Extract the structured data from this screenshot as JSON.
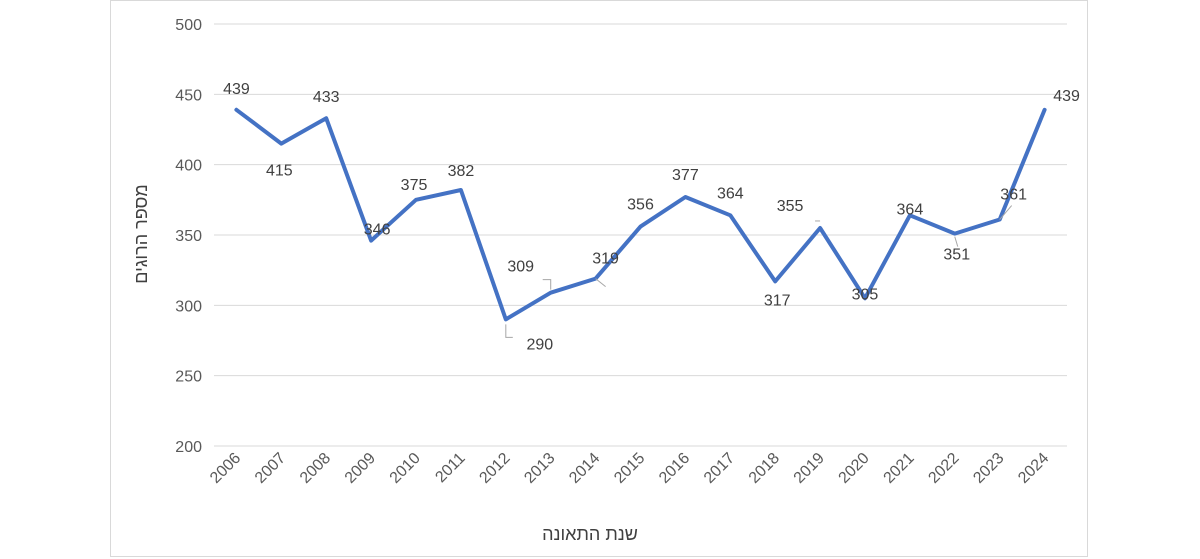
{
  "chart_data": {
    "type": "line",
    "title": "",
    "xlabel": "שנת התאונה",
    "ylabel": "מספר הרוגים",
    "ylim": [
      200,
      500
    ],
    "yticks": [
      200,
      250,
      300,
      350,
      400,
      450,
      500
    ],
    "grid": true,
    "x": [
      "2006",
      "2007",
      "2008",
      "2009",
      "2010",
      "2011",
      "2012",
      "2013",
      "2014",
      "2015",
      "2016",
      "2017",
      "2018",
      "2019",
      "2020",
      "2021",
      "2022",
      "2023",
      "2024"
    ],
    "series": [
      {
        "color": "#4472c4",
        "values": [
          439,
          415,
          433,
          346,
          375,
          382,
          290,
          309,
          319,
          356,
          377,
          364,
          317,
          355,
          305,
          364,
          351,
          361,
          439
        ]
      }
    ]
  }
}
